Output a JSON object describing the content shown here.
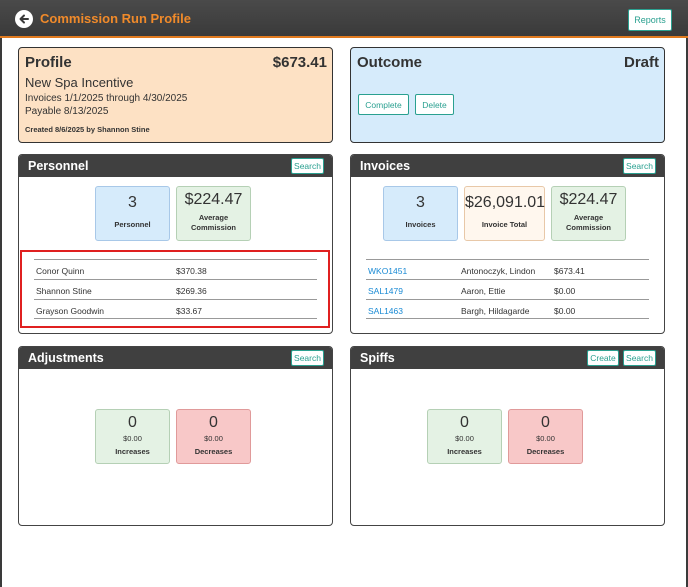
{
  "header": {
    "title": "Commission Run Profile",
    "reports_label": "Reports"
  },
  "profile": {
    "title": "Profile",
    "amount": "$673.41",
    "name": "New Spa Incentive",
    "invoices_range": "Invoices 1/1/2025 through 4/30/2025",
    "payable": "Payable 8/13/2025",
    "created": "Created 8/6/2025 by Shannon Stine"
  },
  "outcome": {
    "title": "Outcome",
    "status": "Draft",
    "complete_label": "Complete",
    "delete_label": "Delete"
  },
  "personnel": {
    "title": "Personnel",
    "search_label": "Search",
    "count": "3",
    "count_label": "Personnel",
    "avg": "$224.47",
    "avg_label_1": "Average",
    "avg_label_2": "Commission",
    "rows": [
      {
        "name": "Conor Quinn",
        "amount": "$370.38"
      },
      {
        "name": "Shannon Stine",
        "amount": "$269.36"
      },
      {
        "name": "Grayson Goodwin",
        "amount": "$33.67"
      }
    ]
  },
  "invoices": {
    "title": "Invoices",
    "search_label": "Search",
    "count": "3",
    "count_label": "Invoices",
    "total": "$26,091.01",
    "total_label": "Invoice Total",
    "avg": "$224.47",
    "avg_label_1": "Average",
    "avg_label_2": "Commission",
    "rows": [
      {
        "id": "WKO1451",
        "customer": "Antonoczyk, Lindon",
        "amount": "$673.41"
      },
      {
        "id": "SAL1479",
        "customer": "Aaron, Ettie",
        "amount": "$0.00"
      },
      {
        "id": "SAL1463",
        "customer": "Bargh, Hildagarde",
        "amount": "$0.00"
      }
    ]
  },
  "adjustments": {
    "title": "Adjustments",
    "search_label": "Search",
    "inc_count": "0",
    "inc_amount": "$0.00",
    "inc_label": "Increases",
    "dec_count": "0",
    "dec_amount": "$0.00",
    "dec_label": "Decreases"
  },
  "spiffs": {
    "title": "Spiffs",
    "create_label": "Create",
    "search_label": "Search",
    "inc_count": "0",
    "inc_amount": "$0.00",
    "inc_label": "Increases",
    "dec_count": "0",
    "dec_amount": "$0.00",
    "dec_label": "Decreases"
  }
}
